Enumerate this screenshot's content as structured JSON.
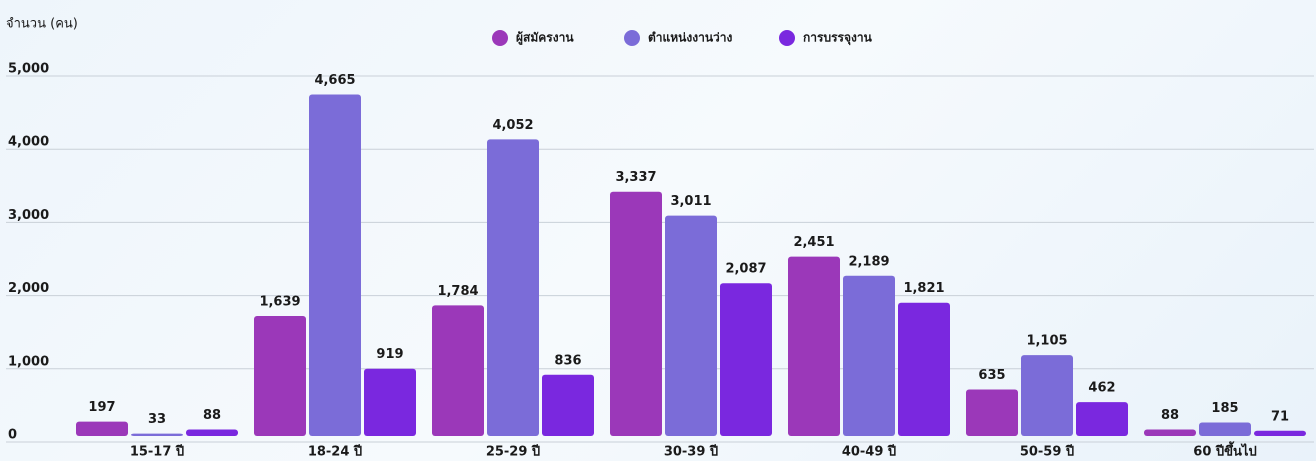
{
  "chart_data": {
    "type": "bar",
    "y_label": "จำนวน (คน)",
    "categories": [
      "15-17 ปี",
      "18-24 ปี",
      "25-29 ปี",
      "30-39 ปี",
      "40-49 ปี",
      "50-59 ปี",
      "60 ปีขึ้นไป"
    ],
    "series": [
      {
        "name": "ผู้สมัครงาน",
        "color": "#9b38b9",
        "values": [
          197,
          1639,
          1784,
          3337,
          2451,
          635,
          88
        ],
        "value_labels": [
          "197",
          "1,639",
          "1,784",
          "3,337",
          "2,451",
          "635",
          "88"
        ]
      },
      {
        "name": "ตำแหน่งงานว่าง",
        "color": "#7b6cd8",
        "values": [
          33,
          4665,
          4052,
          3011,
          2189,
          1105,
          185
        ],
        "value_labels": [
          "33",
          "4,665",
          "4,052",
          "3,011",
          "2,189",
          "1,105",
          "185"
        ]
      },
      {
        "name": "การบรรจุงาน",
        "color": "#7a28df",
        "values": [
          88,
          919,
          836,
          2087,
          1821,
          462,
          71
        ],
        "value_labels": [
          "88",
          "919",
          "836",
          "2,087",
          "1,821",
          "462",
          "71"
        ]
      }
    ],
    "ylim": [
      0,
      5000
    ],
    "yticks": [
      0,
      {
        "value": 1000,
        "label": "1,000"
      },
      {
        "value": 2000,
        "label": "2,000"
      },
      {
        "value": 3000,
        "label": "3,000"
      },
      {
        "value": 4000,
        "label": "4,000"
      },
      {
        "value": 5000,
        "label": "5,000"
      }
    ],
    "grid": true,
    "legend": "top"
  }
}
